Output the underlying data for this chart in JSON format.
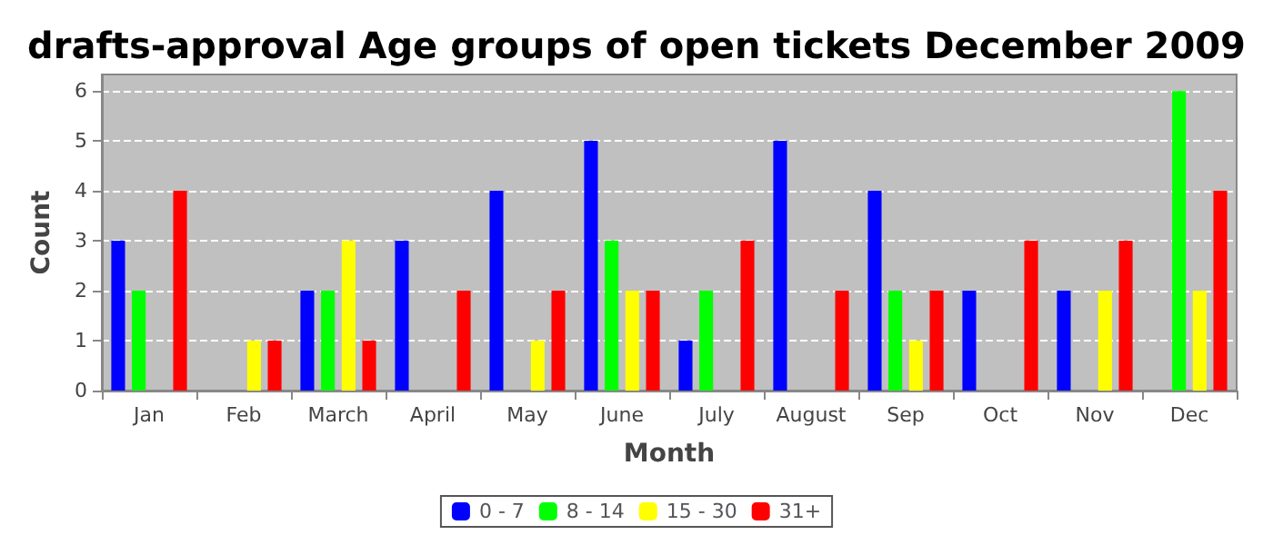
{
  "chart_data": {
    "type": "bar",
    "title": "drafts-approval Age groups of open tickets December 2009",
    "xlabel": "Month",
    "ylabel": "Count",
    "categories": [
      "Jan",
      "Feb",
      "March",
      "April",
      "May",
      "June",
      "July",
      "August",
      "Sep",
      "Oct",
      "Nov",
      "Dec"
    ],
    "series": [
      {
        "name": "0 - 7",
        "color": "#0000ff",
        "values": [
          3,
          0,
          2,
          3,
          4,
          5,
          1,
          5,
          4,
          2,
          2,
          0
        ]
      },
      {
        "name": "8 - 14",
        "color": "#00ff00",
        "values": [
          2,
          0,
          2,
          0,
          0,
          3,
          2,
          0,
          2,
          0,
          0,
          6
        ]
      },
      {
        "name": "15 - 30",
        "color": "#ffff00",
        "values": [
          0,
          1,
          3,
          0,
          1,
          2,
          0,
          0,
          1,
          0,
          2,
          2
        ]
      },
      {
        "name": "31+",
        "color": "#ff0000",
        "values": [
          4,
          1,
          1,
          2,
          2,
          2,
          3,
          2,
          2,
          3,
          3,
          4
        ]
      }
    ],
    "ylim": [
      0,
      6.33
    ],
    "yticks": [
      0,
      1,
      2,
      3,
      4,
      5,
      6
    ],
    "grid": "y",
    "legend": "bottom"
  }
}
